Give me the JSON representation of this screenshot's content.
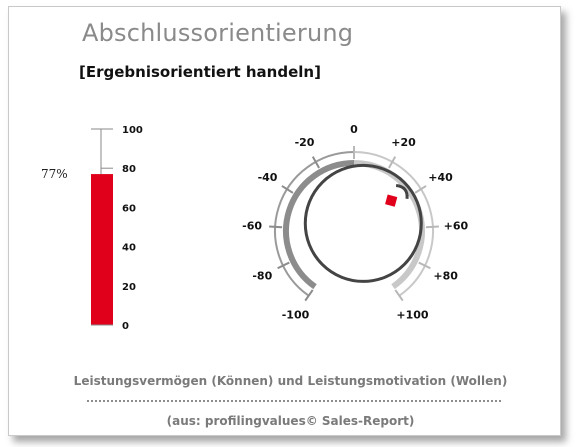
{
  "header": {
    "title": "Abschlussorientierung",
    "subtitle": "[Ergebnisorientiert handeln]"
  },
  "chart_data": [
    {
      "type": "bar",
      "categories": [
        ""
      ],
      "values": [
        77
      ],
      "value_label": "77%",
      "ylim": [
        0,
        100
      ],
      "yticks": [
        "100",
        "80",
        "60",
        "40",
        "20",
        "0"
      ],
      "bar_color": "#e0001b",
      "grid": false
    },
    {
      "type": "gauge",
      "range": [
        -100,
        100
      ],
      "tick_labels": [
        "-100",
        "-80",
        "-60",
        "-40",
        "-20",
        "0",
        "+20",
        "+40",
        "+60",
        "+80",
        "+100"
      ],
      "value": 35,
      "marker_color": "#e0001b",
      "negative_color": "#8c8c8c",
      "positive_color": "#c8c8c8"
    }
  ],
  "footer": {
    "caption": "Leistungsvermögen (Können) und Leistungsmotivation (Wollen)",
    "source": "(aus: profilingvalues© Sales-Report)"
  }
}
